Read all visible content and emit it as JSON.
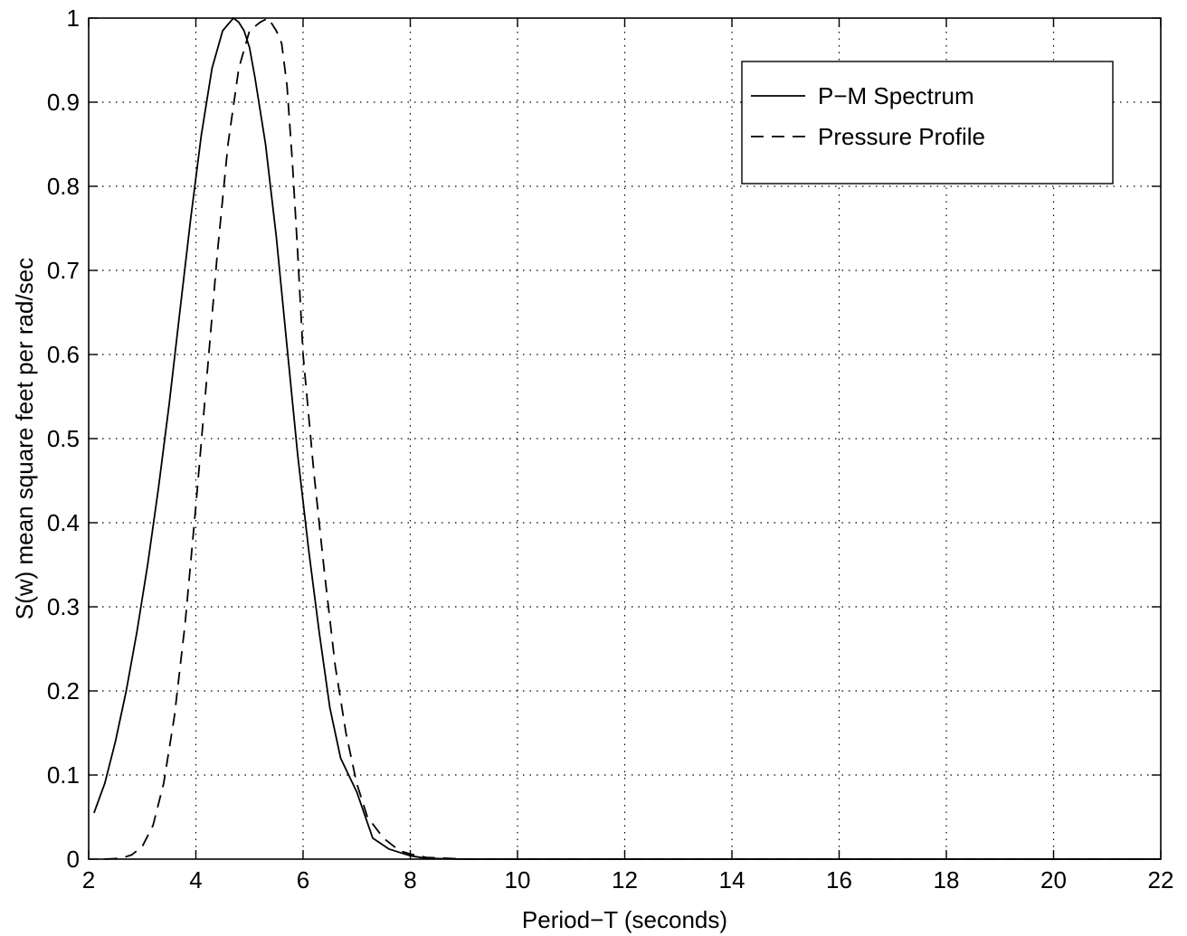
{
  "chart_data": {
    "type": "line",
    "title": "",
    "xlabel": "Period−T (seconds)",
    "ylabel": "S(w) mean square feet per rad/sec",
    "xlim": [
      2,
      22
    ],
    "ylim": [
      0,
      1
    ],
    "xticks": [
      2,
      4,
      6,
      8,
      10,
      12,
      14,
      16,
      18,
      20,
      22
    ],
    "yticks": [
      0,
      0.1,
      0.2,
      0.3,
      0.4,
      0.5,
      0.6,
      0.7,
      0.8,
      0.9,
      1
    ],
    "xtick_labels": [
      "2",
      "4",
      "6",
      "8",
      "10",
      "12",
      "14",
      "16",
      "18",
      "20",
      "22"
    ],
    "ytick_labels": [
      "0",
      "0.1",
      "0.2",
      "0.3",
      "0.4",
      "0.5",
      "0.6",
      "0.7",
      "0.8",
      "0.9",
      "1"
    ],
    "grid": true,
    "legend_position": "top-right",
    "series": [
      {
        "name": "P−M Spectrum",
        "style": "solid",
        "color": "#000000",
        "x": [
          2.1,
          2.3,
          2.5,
          2.7,
          2.9,
          3.1,
          3.3,
          3.5,
          3.7,
          3.9,
          4.1,
          4.3,
          4.5,
          4.7,
          4.8,
          4.9,
          5.0,
          5.1,
          5.3,
          5.5,
          5.7,
          5.9,
          6.1,
          6.3,
          6.5,
          6.7,
          7.0,
          7.3,
          7.6,
          8.0,
          8.3,
          9.0,
          10,
          12,
          16,
          22
        ],
        "y": [
          0.055,
          0.09,
          0.14,
          0.2,
          0.27,
          0.35,
          0.44,
          0.54,
          0.65,
          0.76,
          0.86,
          0.94,
          0.985,
          1.0,
          0.995,
          0.985,
          0.965,
          0.93,
          0.85,
          0.74,
          0.61,
          0.48,
          0.37,
          0.27,
          0.18,
          0.12,
          0.08,
          0.025,
          0.012,
          0.004,
          0.001,
          0.0,
          0.0,
          0.0,
          0.0,
          0.0
        ]
      },
      {
        "name": "Pressure Profile",
        "style": "dashed",
        "color": "#000000",
        "x": [
          2.3,
          2.6,
          2.8,
          3.0,
          3.2,
          3.4,
          3.6,
          3.8,
          4.0,
          4.2,
          4.4,
          4.6,
          4.8,
          5.0,
          5.2,
          5.35,
          5.5,
          5.6,
          5.7,
          5.8,
          5.9,
          6.0,
          6.2,
          6.4,
          6.6,
          6.8,
          7.0,
          7.2,
          7.5,
          7.8,
          8.0,
          8.3,
          9,
          10,
          12,
          16,
          22
        ],
        "y": [
          0.0,
          0.001,
          0.005,
          0.015,
          0.04,
          0.09,
          0.17,
          0.28,
          0.42,
          0.57,
          0.72,
          0.85,
          0.94,
          0.985,
          0.995,
          1.0,
          0.985,
          0.97,
          0.92,
          0.83,
          0.72,
          0.6,
          0.46,
          0.34,
          0.23,
          0.15,
          0.09,
          0.05,
          0.025,
          0.01,
          0.006,
          0.002,
          0.0,
          0.0,
          0.0,
          0.0,
          0.0
        ]
      }
    ]
  }
}
